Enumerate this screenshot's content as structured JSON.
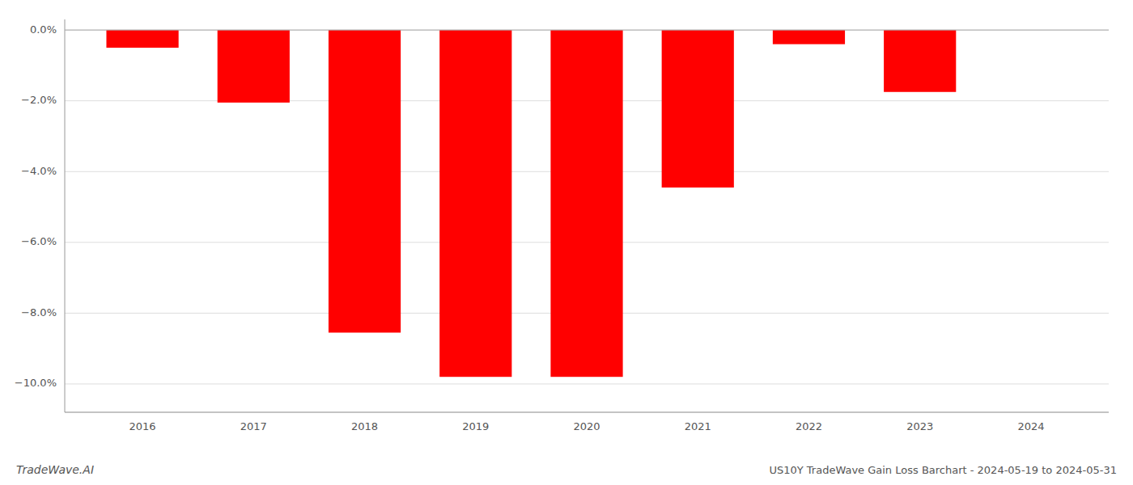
{
  "chart_data": {
    "type": "bar",
    "title": "US10Y TradeWave Gain Loss Barchart - 2024-05-19 to 2024-05-31",
    "annotations": [
      "TradeWave.AI"
    ],
    "x": [
      2016,
      2017,
      2018,
      2019,
      2020,
      2021,
      2022,
      2023
    ],
    "values": [
      -0.5,
      -2.05,
      -8.55,
      -9.8,
      -9.8,
      -4.45,
      -0.4,
      -1.75
    ],
    "color": "#ff0000",
    "xlim": [
      2015.3,
      2024.7
    ],
    "xticks": [
      2016,
      2017,
      2018,
      2019,
      2020,
      2021,
      2022,
      2023,
      2024
    ],
    "ylim": [
      -10.8,
      0.3
    ],
    "yticks": [
      {
        "value": 0.0,
        "label": "0.0%"
      },
      {
        "value": -2.0,
        "label": "−2.0%"
      },
      {
        "value": -4.0,
        "label": "−4.0%"
      },
      {
        "value": -6.0,
        "label": "−6.0%"
      },
      {
        "value": -8.0,
        "label": "−8.0%"
      },
      {
        "value": -10.0,
        "label": "−10.0%"
      }
    ],
    "grid": true
  }
}
